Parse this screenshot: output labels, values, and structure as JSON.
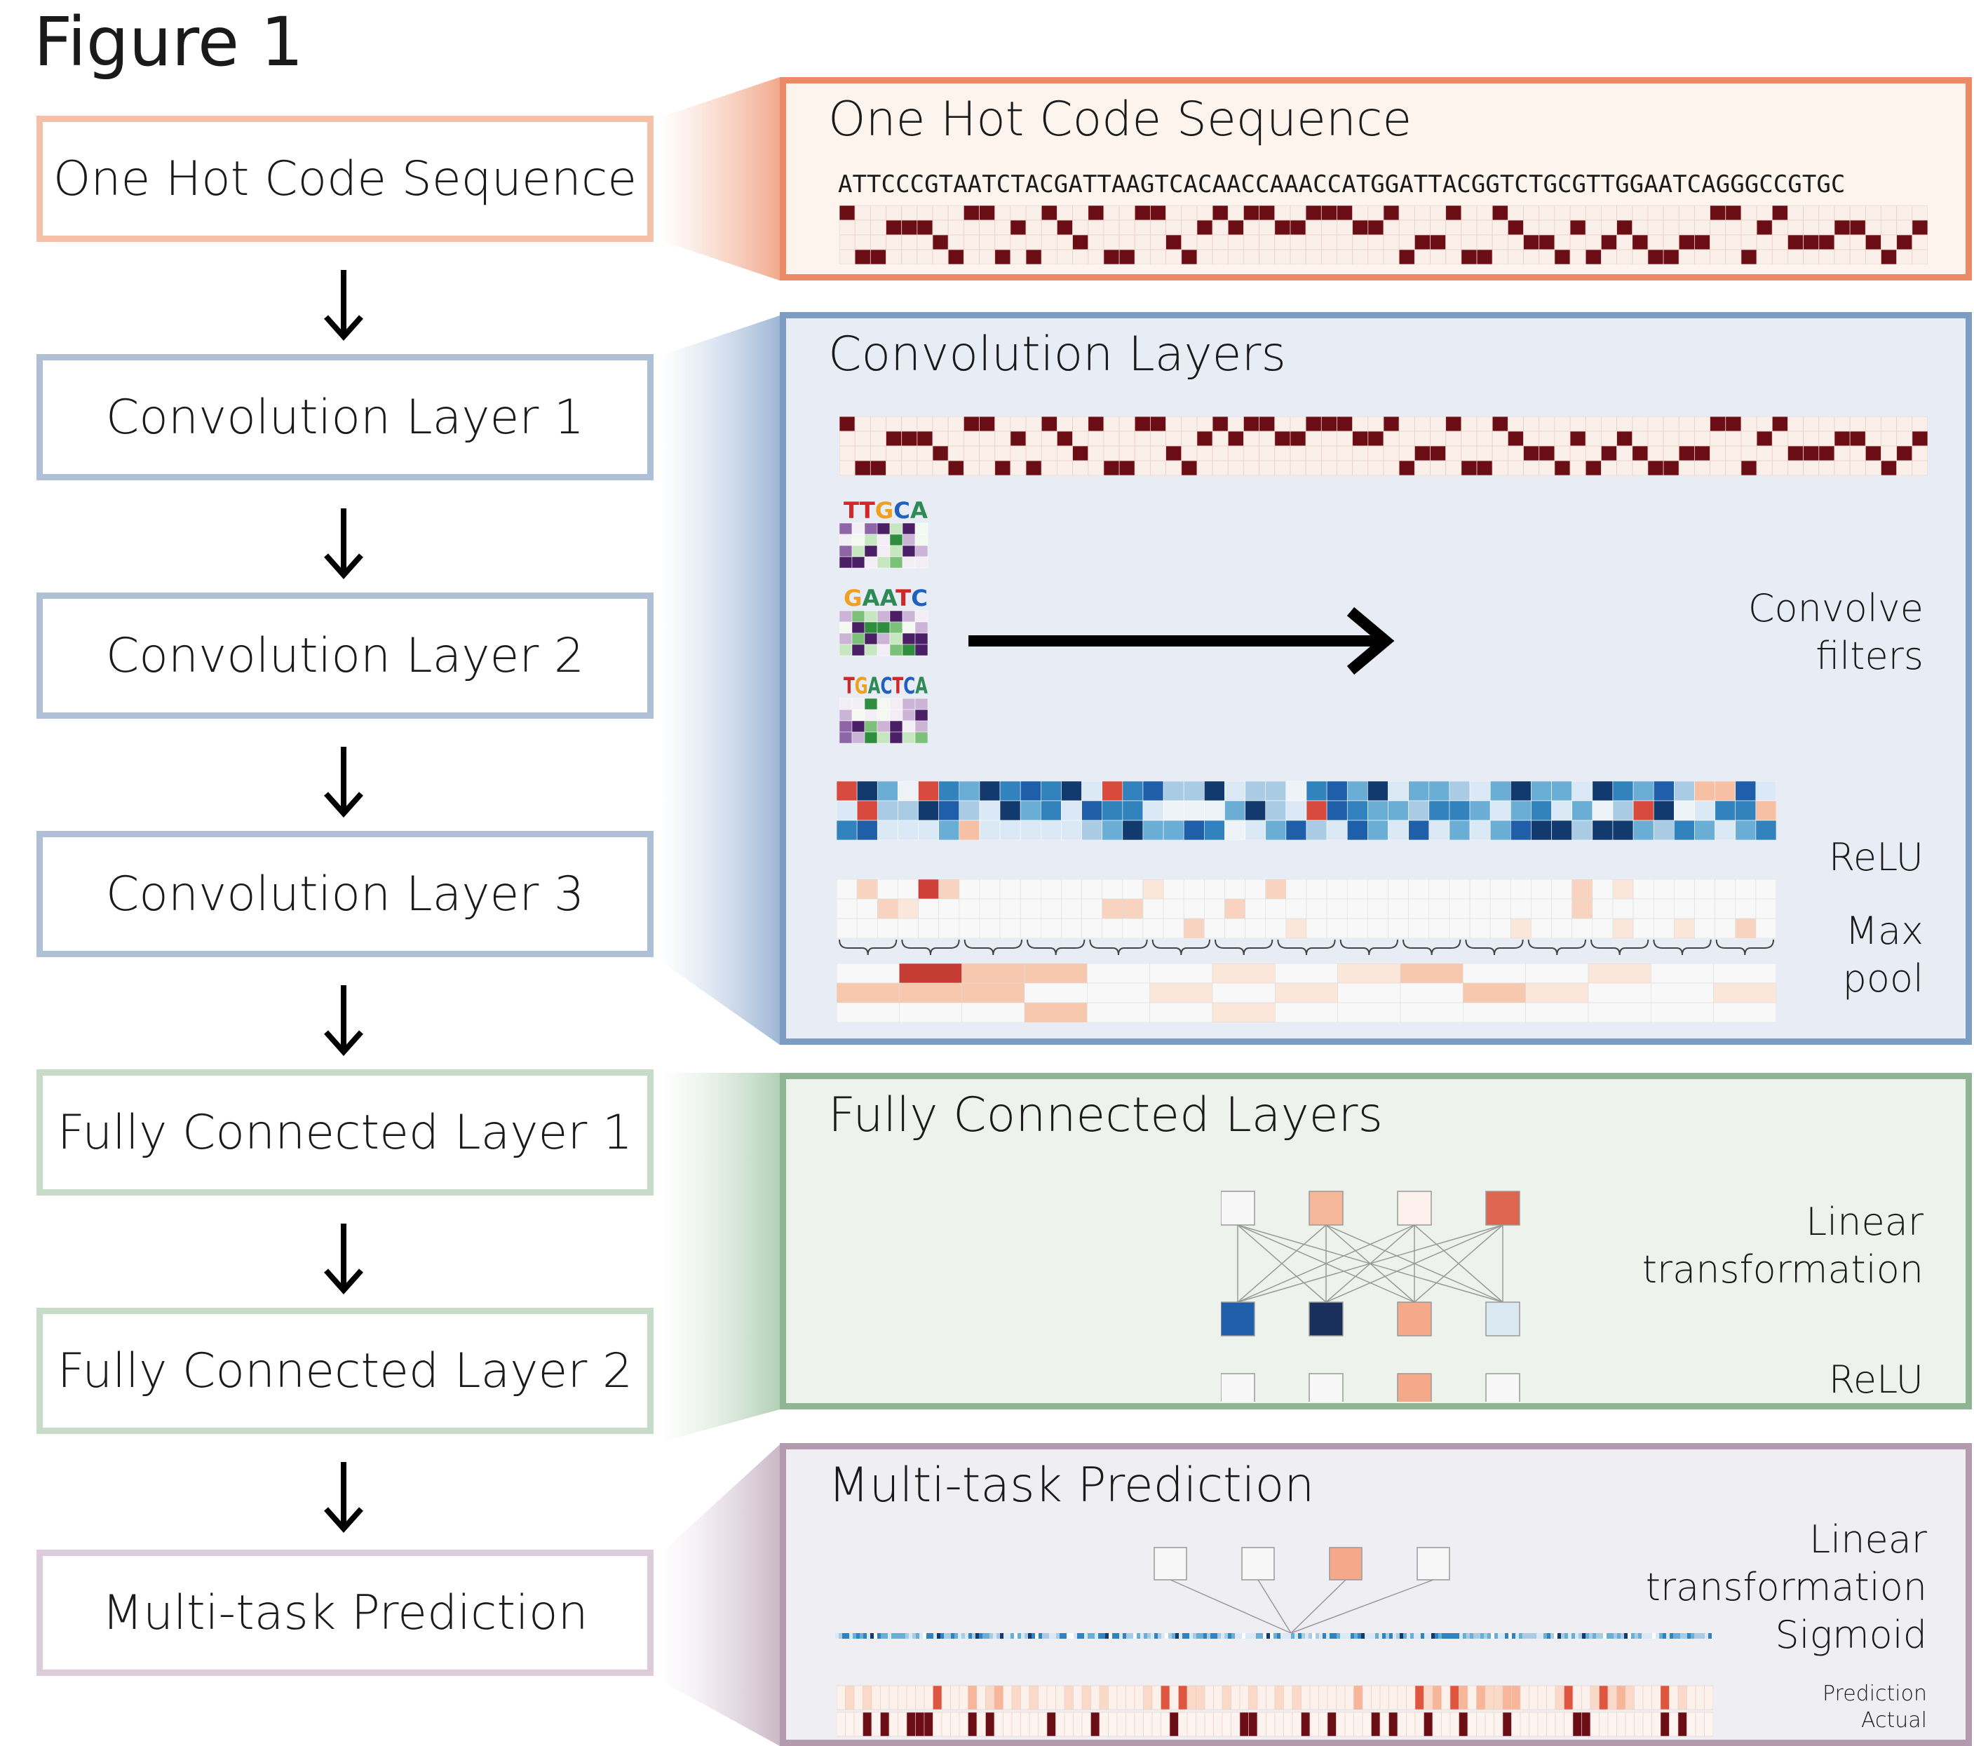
{
  "figure_title": "Figure 1",
  "steps": [
    {
      "label": "One Hot Code Sequence",
      "color": "#f4c0a8"
    },
    {
      "label": "Convolution Layer 1",
      "color": "#aebfd6"
    },
    {
      "label": "Convolution Layer 2",
      "color": "#aebfd6"
    },
    {
      "label": "Convolution Layer 3",
      "color": "#aebfd6"
    },
    {
      "label": "Fully Connected Layer 1",
      "color": "#c6dcc8"
    },
    {
      "label": "Fully Connected Layer 2",
      "color": "#c6dcc8"
    },
    {
      "label": "Multi-task Prediction",
      "color": "#dccbd9"
    }
  ],
  "panels": {
    "onehot": {
      "title": "One Hot Code Sequence",
      "border": "#ec8a68",
      "bg": "#fdf4ee",
      "sequence": "ATTCCCGTAATCTACGATTAAGTCACAACCAAACCATGGATTACGGTCTGCGTTGGAATCAGGGCCGTGC"
    },
    "conv": {
      "title": "Convolution Layers",
      "border": "#7d9cc4",
      "bg": "#e8edf5",
      "convolve_label": [
        "Convolve",
        "filters"
      ],
      "relu_label": "ReLU",
      "maxpool_label": [
        "Max",
        "pool"
      ],
      "filter_logos": [
        "TTGCA",
        "GAATC",
        "TGACTCA"
      ]
    },
    "fc": {
      "title": "Fully Connected Layers",
      "border": "#8fb594",
      "bg": "#edf2ed",
      "linear_label": [
        "Linear",
        "transformation"
      ],
      "relu_label": "ReLU",
      "top_nodes": [
        "#f7f7f7",
        "#f4b79a",
        "#fbf0ec",
        "#dd6651"
      ],
      "bottom_nodes": [
        "#1f5ea8",
        "#1b2f5c",
        "#f4a98a",
        "#dbe9f3"
      ],
      "relu_nodes": [
        "#f7f7f7",
        "#f7f7f7",
        "#f4a98a",
        "#f7f7f7"
      ]
    },
    "mt": {
      "title": "Multi-task Prediction",
      "border": "#b39aaf",
      "bg": "#efeef2",
      "labels": [
        "Linear",
        "transformation",
        "Sigmoid"
      ],
      "prediction_label": "Prediction",
      "actual_label": "Actual",
      "nodes": [
        "#f7f7f7",
        "#f7f7f7",
        "#f4a98a",
        "#f7f7f7"
      ]
    }
  },
  "colors": {
    "onehot_filled": "#6b0d14",
    "onehot_empty": "#fbefe9"
  }
}
